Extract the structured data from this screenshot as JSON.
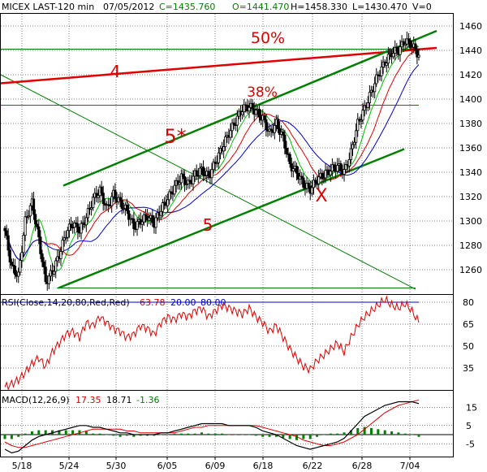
{
  "header": {
    "symbol": "MICEX LAST-120 min",
    "date": "07/05/2012",
    "close": "C=1435.760",
    "open": "O=1441.470",
    "high": "H=1458.330",
    "low": "L=1430.470",
    "volume": "V=0"
  },
  "colors": {
    "candle": "#000000",
    "rsi": "#e00000",
    "macd": "#000000",
    "signal": "#e00000",
    "hist": "#008000",
    "ma_fast": "#00c000",
    "ma_mid": "#e00000",
    "ma_slow": "#0000cc",
    "channel": "#008000",
    "resistance": "#e00000"
  },
  "x_axis": {
    "labels": [
      "5/18",
      "5/24",
      "5/30",
      "6/05",
      "6/09",
      "6/18",
      "6/22",
      "6/28",
      "7/04"
    ]
  },
  "chart_data": [
    {
      "type": "candlestick",
      "title": "MICEX LAST-120 min",
      "y_ticks": [
        1260,
        1280,
        1300,
        1320,
        1340,
        1360,
        1380,
        1400,
        1420,
        1440,
        1460
      ],
      "ylim": [
        1240,
        1470
      ],
      "close_path": [
        1292,
        1262,
        1255,
        1300,
        1315,
        1285,
        1250,
        1258,
        1272,
        1290,
        1298,
        1292,
        1303,
        1318,
        1325,
        1310,
        1322,
        1315,
        1308,
        1295,
        1300,
        1304,
        1298,
        1310,
        1318,
        1328,
        1336,
        1330,
        1338,
        1342,
        1336,
        1348,
        1360,
        1372,
        1382,
        1392,
        1394,
        1390,
        1384,
        1372,
        1380,
        1368,
        1346,
        1340,
        1330,
        1326,
        1334,
        1338,
        1342,
        1345,
        1340,
        1356,
        1380,
        1392,
        1406,
        1420,
        1430,
        1438,
        1440,
        1448,
        1444,
        1436
      ],
      "annotations": [
        {
          "text": "50%",
          "price": 1446
        },
        {
          "text": "38%",
          "price": 1402
        },
        {
          "text": "4",
          "price": 1418
        },
        {
          "text": "5*",
          "price": 1364
        },
        {
          "text": "5",
          "price": 1292
        },
        {
          "text": "X",
          "price": 1316
        }
      ],
      "horizontal_levels": [
        1441,
        1395,
        1245
      ],
      "moving_averages": [
        "fast",
        "mid",
        "slow"
      ]
    },
    {
      "type": "line",
      "title": "RSI(Close,14,20,80,Red,Red)",
      "current_value": "63.78",
      "lower_level": "20.00",
      "upper_level": "80.00",
      "y_ticks": [
        35,
        50,
        65,
        80
      ],
      "ylim": [
        20,
        85
      ],
      "series": [
        {
          "values": [
            22,
            24,
            27,
            32,
            38,
            42,
            36,
            46,
            52,
            58,
            60,
            56,
            66,
            64,
            70,
            66,
            62,
            60,
            56,
            58,
            64,
            62,
            58,
            66,
            70,
            68,
            72,
            70,
            74,
            76,
            70,
            74,
            78,
            76,
            74,
            72,
            76,
            70,
            66,
            60,
            64,
            56,
            48,
            42,
            36,
            34,
            40,
            44,
            48,
            52,
            46,
            56,
            64,
            70,
            74,
            78,
            82,
            78,
            76,
            79,
            74,
            66
          ]
        }
      ]
    },
    {
      "type": "line",
      "title": "MACD(12,26,9)",
      "values_text": [
        "17.35",
        "18.71",
        "-1.36"
      ],
      "y_ticks": [
        -5,
        5,
        15
      ],
      "ylim": [
        -12,
        24
      ],
      "series": [
        {
          "values": [
            -8,
            -10,
            -9,
            -6,
            -3,
            -1,
            0,
            1,
            2,
            3,
            4,
            5,
            5,
            4,
            4,
            3,
            2,
            1,
            1,
            0,
            0,
            0,
            0,
            1,
            1,
            2,
            3,
            4,
            5,
            6,
            6,
            6,
            6,
            5,
            5,
            5,
            5,
            4,
            2,
            1,
            0,
            -2,
            -4,
            -6,
            -7,
            -8,
            -7,
            -6,
            -5,
            -4,
            -2,
            2,
            6,
            10,
            12,
            14,
            16,
            17,
            18,
            18,
            18,
            17
          ]
        },
        {
          "values": [
            -4,
            -6,
            -7,
            -7,
            -6,
            -5,
            -4,
            -3,
            -2,
            -1,
            0,
            1,
            2,
            3,
            3,
            3,
            3,
            3,
            2,
            2,
            1,
            1,
            1,
            1,
            1,
            1,
            2,
            3,
            4,
            4,
            5,
            5,
            5,
            5,
            5,
            5,
            5,
            5,
            4,
            3,
            2,
            1,
            0,
            -1,
            -3,
            -4,
            -5,
            -6,
            -6,
            -5,
            -4,
            -2,
            0,
            3,
            6,
            9,
            12,
            14,
            16,
            17,
            18,
            19
          ]
        }
      ]
    }
  ]
}
